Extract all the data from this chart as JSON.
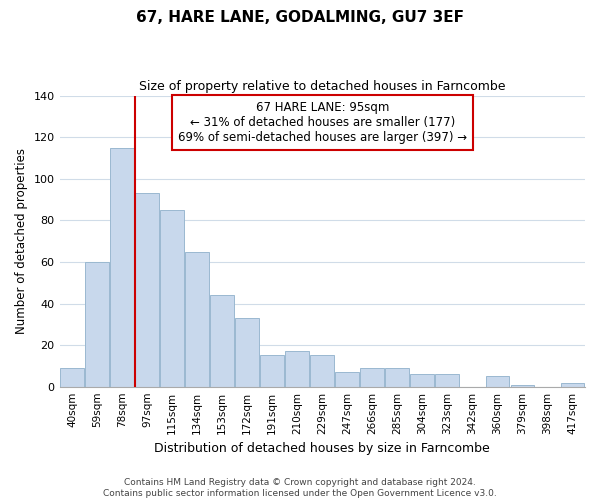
{
  "title": "67, HARE LANE, GODALMING, GU7 3EF",
  "subtitle": "Size of property relative to detached houses in Farncombe",
  "xlabel": "Distribution of detached houses by size in Farncombe",
  "ylabel": "Number of detached properties",
  "footer_line1": "Contains HM Land Registry data © Crown copyright and database right 2024.",
  "footer_line2": "Contains public sector information licensed under the Open Government Licence v3.0.",
  "bar_labels": [
    "40sqm",
    "59sqm",
    "78sqm",
    "97sqm",
    "115sqm",
    "134sqm",
    "153sqm",
    "172sqm",
    "191sqm",
    "210sqm",
    "229sqm",
    "247sqm",
    "266sqm",
    "285sqm",
    "304sqm",
    "323sqm",
    "342sqm",
    "360sqm",
    "379sqm",
    "398sqm",
    "417sqm"
  ],
  "bar_values": [
    9,
    60,
    115,
    93,
    85,
    65,
    44,
    33,
    15,
    17,
    15,
    7,
    9,
    9,
    6,
    6,
    0,
    5,
    1,
    0,
    2
  ],
  "bar_color": "#c8d8ec",
  "bar_edge_color": "#9ab8d0",
  "vline_color": "#cc0000",
  "annotation_line1": "67 HARE LANE: 95sqm",
  "annotation_line2": "← 31% of detached houses are smaller (177)",
  "annotation_line3": "69% of semi-detached houses are larger (397) →",
  "annotation_box_edge": "#cc0000",
  "ylim": [
    0,
    140
  ],
  "yticks": [
    0,
    20,
    40,
    60,
    80,
    100,
    120,
    140
  ],
  "background_color": "#ffffff",
  "grid_color": "#d0dce8"
}
